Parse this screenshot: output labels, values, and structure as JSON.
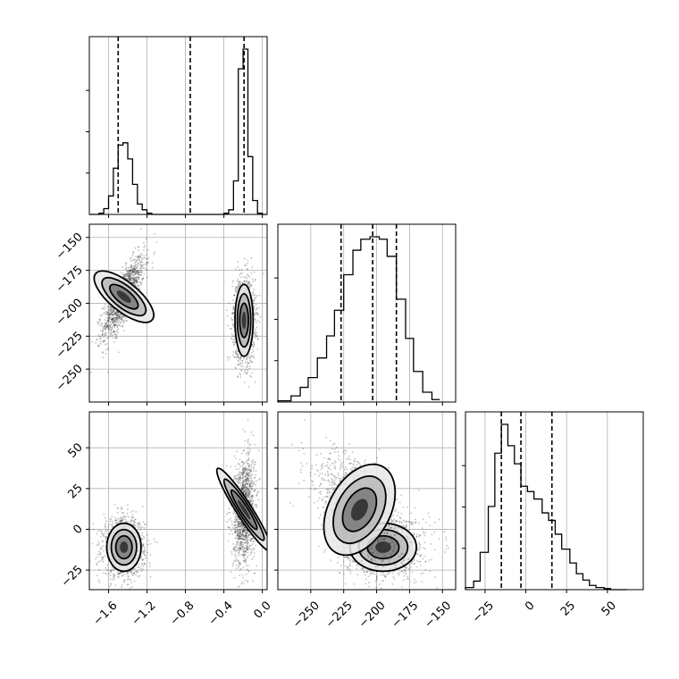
{
  "chart_data": {
    "type": "corner",
    "grid": true,
    "params": [
      {
        "range": [
          -1.8,
          0.05
        ],
        "ticks": [
          -1.6,
          -1.2,
          -0.8,
          -0.4,
          0.0
        ],
        "tick_labels": [
          "−1.6",
          "−1.2",
          "−0.8",
          "−0.4",
          "0.0"
        ],
        "quantiles": [
          -1.5,
          -0.75,
          -0.19
        ],
        "hist": {
          "edges": [
            -1.8,
            -1.7,
            -1.65,
            -1.6,
            -1.55,
            -1.5,
            -1.45,
            -1.4,
            -1.35,
            -1.3,
            -1.25,
            -1.2,
            -1.15,
            -1.1,
            -0.5,
            -0.4,
            -0.35,
            -0.3,
            -0.25,
            -0.2,
            -0.15,
            -0.1,
            -0.05,
            0.0,
            0.05
          ],
          "counts": [
            0,
            1,
            5,
            16,
            40,
            60,
            62,
            48,
            26,
            9,
            4,
            1,
            0,
            0,
            0,
            1,
            4,
            29,
            126,
            143,
            50,
            12,
            1,
            0
          ]
        }
      },
      {
        "range": [
          -275,
          -140
        ],
        "ticks": [
          -250,
          -225,
          -200,
          -175,
          -150
        ],
        "tick_labels": [
          "−250",
          "−225",
          "−200",
          "−175",
          "−150"
        ],
        "quantiles": [
          -227,
          -203,
          -185
        ],
        "hist": {
          "edges": [
            -275,
            -265,
            -258,
            -252,
            -245,
            -238,
            -232,
            -225,
            -218,
            -212,
            -205,
            -198,
            -192,
            -185,
            -178,
            -172,
            -165,
            -158,
            -152
          ],
          "counts": [
            1,
            5,
            12,
            20,
            36,
            54,
            75,
            104,
            124,
            133,
            135,
            133,
            119,
            84,
            52,
            25,
            8,
            2
          ]
        }
      },
      {
        "range": [
          -37,
          72
        ],
        "ticks": [
          -25,
          0,
          25,
          50
        ],
        "tick_labels": [
          "−25",
          "0",
          "25",
          "50"
        ],
        "quantiles": [
          -15,
          -3,
          16
        ],
        "hist": {
          "edges": [
            -37,
            -32,
            -28,
            -23,
            -19,
            -15,
            -11,
            -7,
            -3,
            1,
            5,
            10,
            14,
            18,
            22,
            27,
            31,
            35,
            39,
            43,
            48,
            52,
            57,
            62
          ],
          "counts": [
            2,
            8,
            35,
            78,
            128,
            155,
            135,
            118,
            97,
            92,
            85,
            72,
            65,
            52,
            38,
            25,
            15,
            9,
            4,
            2,
            1,
            0,
            0
          ]
        }
      }
    ],
    "clusters": [
      {
        "center": [
          -1.44,
          -195,
          -11
        ],
        "std": [
          0.085,
          12,
          7
        ],
        "corr": {
          "0_1": 0.78,
          "0_2": 0.0,
          "1_2": 0.0
        }
      },
      {
        "center": [
          -0.19,
          -213,
          12
        ],
        "std": [
          0.045,
          13,
          13
        ],
        "corr": {
          "0_1": 0.0,
          "0_2": 0.15,
          "1_2": -0.5
        }
      }
    ],
    "cells": [
      {
        "row": 1,
        "col": 0
      },
      {
        "row": 2,
        "col": 0
      },
      {
        "row": 2,
        "col": 1
      }
    ]
  }
}
